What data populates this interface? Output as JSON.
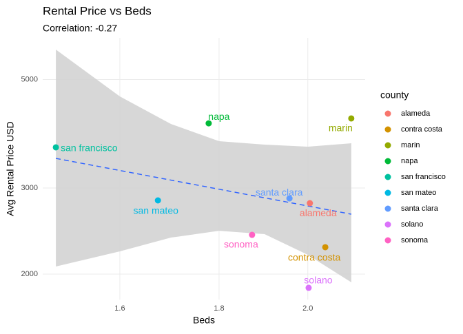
{
  "chart_data": {
    "type": "scatter",
    "title": "Rental Price vs Beds",
    "subtitle": "Correlation:  -0.27",
    "x_label": "Beds",
    "y_label": "Avg Rental Price USD",
    "legend_title": "county",
    "legend_position": "right",
    "x_scale": "log",
    "y_scale": "log",
    "grid": true,
    "categories": [
      "alameda",
      "contra costa",
      "marin",
      "napa",
      "san francisco",
      "san mateo",
      "santa clara",
      "solano",
      "sonoma"
    ],
    "colors": [
      "#F8766D",
      "#D39200",
      "#93AA00",
      "#00BA38",
      "#00C19F",
      "#00B9E3",
      "#619CFF",
      "#DB72FB",
      "#FF61C3"
    ],
    "x": [
      2.005,
      2.042,
      2.106,
      1.778,
      1.483,
      1.674,
      1.957,
      2.002,
      1.872
    ],
    "values": [
      2793,
      2270,
      4163,
      4068,
      3633,
      2830,
      2857,
      1875,
      2406
    ],
    "trend": {
      "color": "#3366FF",
      "x": [
        1.483,
        2.106
      ],
      "values": [
        3449,
        2652
      ]
    },
    "band": {
      "color": "#d3d3d3",
      "x": [
        1.483,
        1.6,
        1.7,
        1.8,
        1.9,
        2.0,
        2.106
      ],
      "upper": [
        5757,
        4618,
        4056,
        3740,
        3680,
        3644,
        3704
      ],
      "lower": [
        2073,
        2226,
        2375,
        2453,
        2414,
        2190,
        1924
      ]
    },
    "xlim": [
      1.46,
      2.141
    ],
    "ylim": [
      1774,
      6084
    ],
    "xticks": [
      1.6,
      1.8,
      {
        "value": 2,
        "label": "2.0"
      }
    ],
    "yticks": [
      2000,
      3000,
      5000
    ]
  }
}
